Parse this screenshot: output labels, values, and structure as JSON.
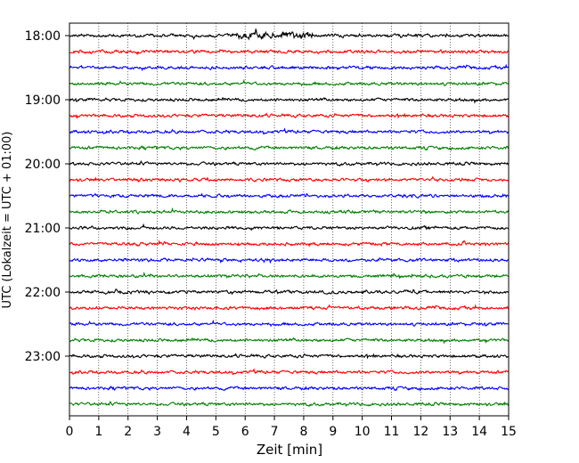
{
  "chart_data": {
    "type": "line",
    "xlabel": "Zeit  [min]",
    "ylabel": "UTC (Lokalzeit = UTC + 01:00)",
    "xlim": [
      0,
      15
    ],
    "x_ticks": [
      0,
      1,
      2,
      3,
      4,
      5,
      6,
      7,
      8,
      9,
      10,
      11,
      12,
      13,
      14,
      15
    ],
    "x_grid": "dotted vertical lines at each minute",
    "y_tick_labels": [
      "18:00",
      "19:00",
      "20:00",
      "21:00",
      "22:00",
      "23:00"
    ],
    "trace_interval_min": 15,
    "trace_start_times": [
      "18:00",
      "18:15",
      "18:30",
      "18:45",
      "19:00",
      "19:15",
      "19:30",
      "19:45",
      "20:00",
      "20:15",
      "20:30",
      "20:45",
      "21:00",
      "21:15",
      "21:30",
      "21:45",
      "22:00",
      "22:15",
      "22:30",
      "22:45",
      "23:00",
      "23:15",
      "23:30",
      "23:45"
    ],
    "trace_colors_cycle": [
      "#000000",
      "#ff0000",
      "#0000ff",
      "#008000"
    ],
    "series_description": "24 seismogram traces, one per 15-minute window, each plotted over 0-15 min; larger amplitude burst on the 18:00 trace around 6-8 min"
  }
}
